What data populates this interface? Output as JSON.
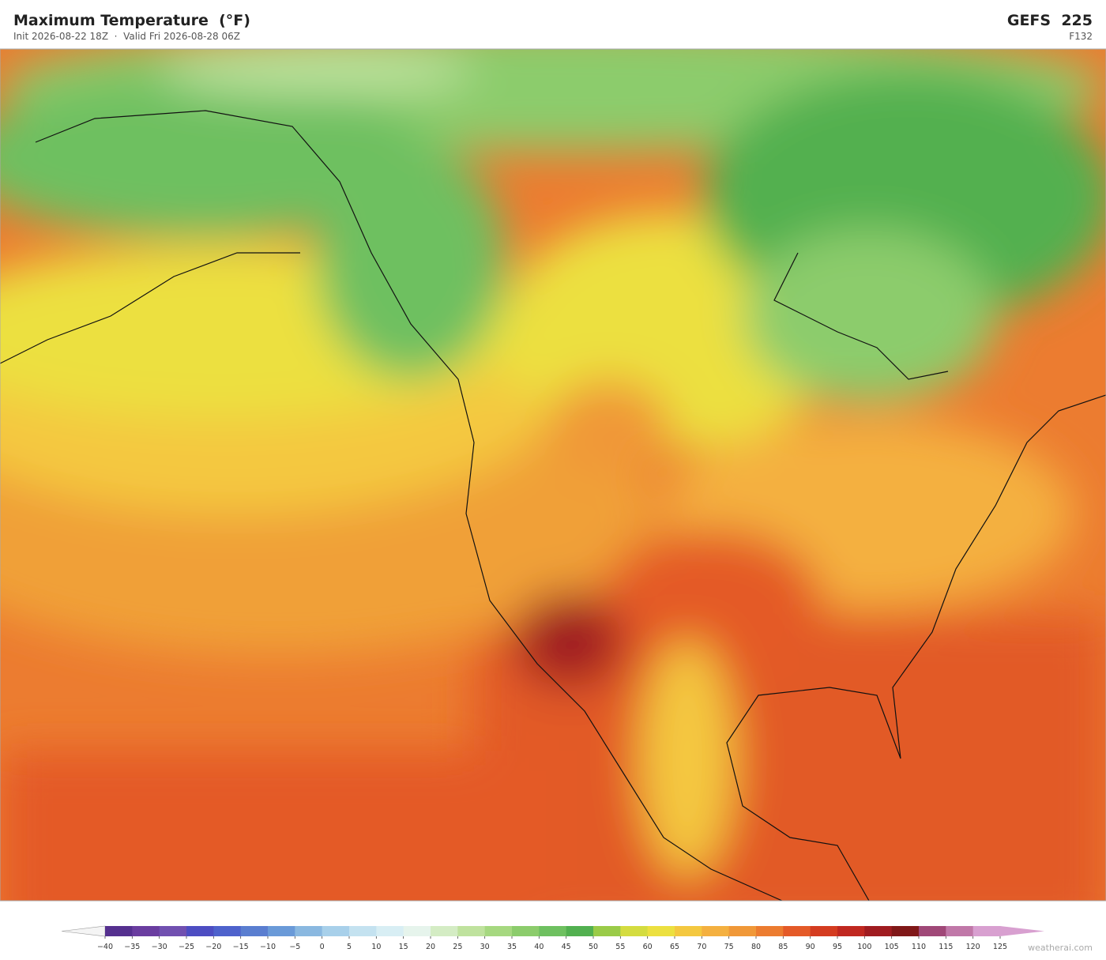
{
  "header": {
    "title": "Maximum Temperature  (°F)",
    "subtitle": "Init 2026-08-22 18Z  ·  Valid Fri 2026-08-28 06Z",
    "model": "GEFS  225",
    "forecast_hour": "F132"
  },
  "colorbar": {
    "ticks": [
      {
        "value": -40,
        "label": "−40"
      },
      {
        "value": -35,
        "label": "−35"
      },
      {
        "value": -30,
        "label": "−30"
      },
      {
        "value": -25,
        "label": "−25"
      },
      {
        "value": -20,
        "label": "−20"
      },
      {
        "value": -15,
        "label": "−15"
      },
      {
        "value": -10,
        "label": "−10"
      },
      {
        "value": -5,
        "label": "−5"
      },
      0,
      5,
      10,
      15,
      20,
      25,
      30,
      35,
      40,
      45,
      50,
      55,
      60,
      65,
      70,
      75,
      80,
      85,
      90,
      95,
      100,
      105,
      110,
      115,
      120,
      125
    ],
    "colors": [
      "#55308f",
      "#6a3da0",
      "#7150b0",
      "#4d4dc2",
      "#4e62cc",
      "#5a7ed0",
      "#6a9ad8",
      "#8ab8e0",
      "#a8d0ea",
      "#c4e2f0",
      "#d8eef4",
      "#e6f4ec",
      "#d4ecc4",
      "#bfe29e",
      "#a6d880",
      "#8ccc6c",
      "#6ec060",
      "#52b050",
      "#9acb48",
      "#d4dc40",
      "#ece040",
      "#f4c840",
      "#f4b040",
      "#f09838",
      "#ec7c30",
      "#e45a28",
      "#d43c20",
      "#c02820",
      "#a01c20",
      "#801818",
      "#a04878",
      "#c078a8",
      "#d8a0d0"
    ],
    "under_color": "#f4f4f4",
    "over_color": "#d8a0d0"
  },
  "footer": {
    "credit": "weatherai.com"
  }
}
